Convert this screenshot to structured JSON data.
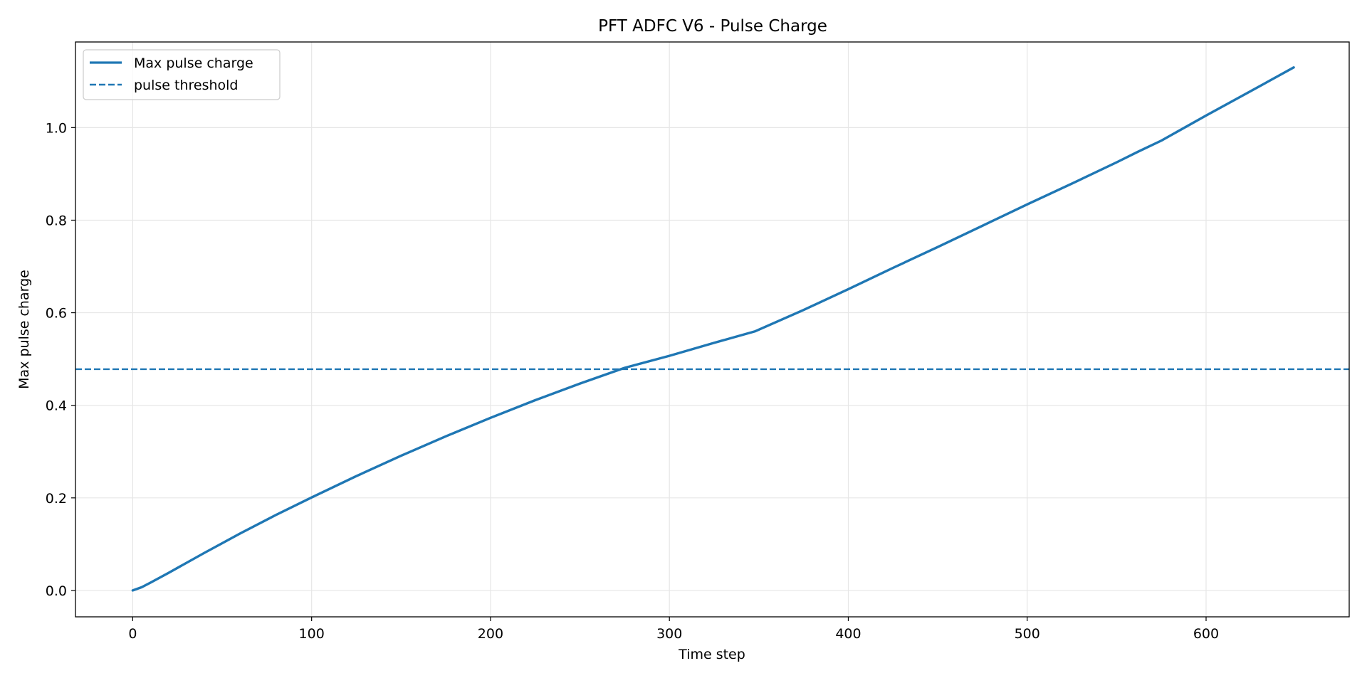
{
  "chart_data": {
    "type": "line",
    "title": "PFT ADFC V6 - Pulse Charge",
    "xlabel": "Time step",
    "ylabel": "Max pulse charge",
    "xlim": [
      -32,
      680
    ],
    "ylim": [
      -0.057,
      1.185
    ],
    "grid": true,
    "legend_position": "top-left",
    "xticks": [
      0,
      100,
      200,
      300,
      400,
      500,
      600
    ],
    "xtick_labels": [
      "0",
      "100",
      "200",
      "300",
      "400",
      "500",
      "600"
    ],
    "yticks": [
      0.0,
      0.2,
      0.4,
      0.6,
      0.8,
      1.0
    ],
    "ytick_labels": [
      "0.0",
      "0.2",
      "0.4",
      "0.6",
      "0.8",
      "1.0"
    ],
    "colors": {
      "series": "#1f77b4",
      "threshold": "#1f77b4",
      "grid": "#e6e6e6"
    },
    "series": [
      {
        "name": "Max pulse charge",
        "style": "solid",
        "x": [
          0,
          5,
          10,
          20,
          40,
          60,
          80,
          100,
          125,
          150,
          175,
          200,
          225,
          250,
          275,
          300,
          325,
          348,
          375,
          400,
          425,
          450,
          475,
          500,
          525,
          550,
          562,
          575,
          600,
          625,
          649
        ],
        "y": [
          0.0,
          0.007,
          0.017,
          0.038,
          0.081,
          0.123,
          0.163,
          0.201,
          0.247,
          0.291,
          0.333,
          0.373,
          0.411,
          0.447,
          0.481,
          0.507,
          0.535,
          0.56,
          0.606,
          0.651,
          0.697,
          0.742,
          0.788,
          0.834,
          0.879,
          0.925,
          0.948,
          0.972,
          1.026,
          1.079,
          1.13
        ]
      }
    ],
    "threshold": {
      "name": "pulse threshold",
      "style": "dashed",
      "y": 0.478
    }
  }
}
